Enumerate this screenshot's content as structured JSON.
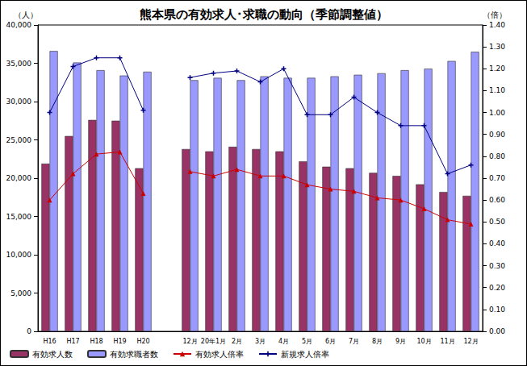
{
  "chart_data": {
    "type": "bar",
    "title": "熊本県の有効求人･求職の動向（季節調整値）",
    "y_label": "（人）",
    "y2_label": "（倍）",
    "categories": [
      "H16",
      "H17",
      "H18",
      "H19",
      "H20",
      null,
      "12月",
      "20年1月",
      "2月",
      "3月",
      "4月",
      "5月",
      "6月",
      "7月",
      "8月",
      "9月",
      "10月",
      "11月",
      "12月"
    ],
    "series": [
      {
        "name": "有効求人数",
        "type": "bar",
        "color": "#993366",
        "values": [
          21900,
          25500,
          27600,
          27500,
          21300,
          null,
          23800,
          23500,
          24100,
          23800,
          23500,
          22200,
          21500,
          21300,
          20700,
          20300,
          19200,
          18200,
          17700
        ]
      },
      {
        "name": "有効求職者数",
        "type": "bar",
        "color": "#9999ff",
        "values": [
          36600,
          35100,
          34100,
          33400,
          33900,
          null,
          32800,
          33100,
          32800,
          33300,
          33100,
          33100,
          33300,
          33500,
          33700,
          34100,
          34300,
          35300,
          36500
        ]
      },
      {
        "name": "有効求人倍率",
        "type": "line",
        "axis": "y2",
        "color": "#cc0000",
        "marker": "triangle",
        "values": [
          0.6,
          0.72,
          0.81,
          0.82,
          0.63,
          null,
          0.73,
          0.71,
          0.74,
          0.71,
          0.71,
          0.67,
          0.65,
          0.64,
          0.61,
          0.6,
          0.56,
          0.51,
          0.49
        ]
      },
      {
        "name": "新規求人倍率",
        "type": "line",
        "axis": "y2",
        "color": "#000080",
        "marker": "plus",
        "values": [
          1.0,
          1.21,
          1.25,
          1.25,
          1.01,
          null,
          1.16,
          1.18,
          1.19,
          1.14,
          1.2,
          0.99,
          0.99,
          1.07,
          1.0,
          0.94,
          0.94,
          0.72,
          0.76
        ]
      }
    ],
    "ylim": [
      0,
      40000
    ],
    "yticks": [
      0,
      {
        "value": 5000,
        "label": "5,000"
      },
      {
        "value": 10000,
        "label": "10,000"
      },
      {
        "value": 15000,
        "label": "15,000"
      },
      {
        "value": 20000,
        "label": "20,000"
      },
      {
        "value": 25000,
        "label": "25,000"
      },
      {
        "value": 30000,
        "label": "30,000"
      },
      {
        "value": 35000,
        "label": "35,000"
      },
      {
        "value": 40000,
        "label": "40,000"
      }
    ],
    "y2lim": [
      0,
      1.4
    ],
    "y2ticks": [
      {
        "value": 0,
        "label": "0.00"
      },
      {
        "value": 0.1,
        "label": "0.10"
      },
      {
        "value": 0.2,
        "label": "0.20"
      },
      {
        "value": 0.3,
        "label": "0.30"
      },
      {
        "value": 0.4,
        "label": "0.40"
      },
      {
        "value": 0.5,
        "label": "0.50"
      },
      {
        "value": 0.6,
        "label": "0.60"
      },
      {
        "value": 0.7,
        "label": "0.70"
      },
      {
        "value": 0.8,
        "label": "0.80"
      },
      {
        "value": 0.9,
        "label": "0.90"
      },
      {
        "value": 1.0,
        "label": "1.00"
      },
      {
        "value": 1.1,
        "label": "1.10"
      },
      {
        "value": 1.2,
        "label": "1.20"
      },
      {
        "value": 1.3,
        "label": "1.30"
      },
      {
        "value": 1.4,
        "label": "1.40"
      }
    ],
    "grid": false,
    "legend": "bottom-left"
  }
}
